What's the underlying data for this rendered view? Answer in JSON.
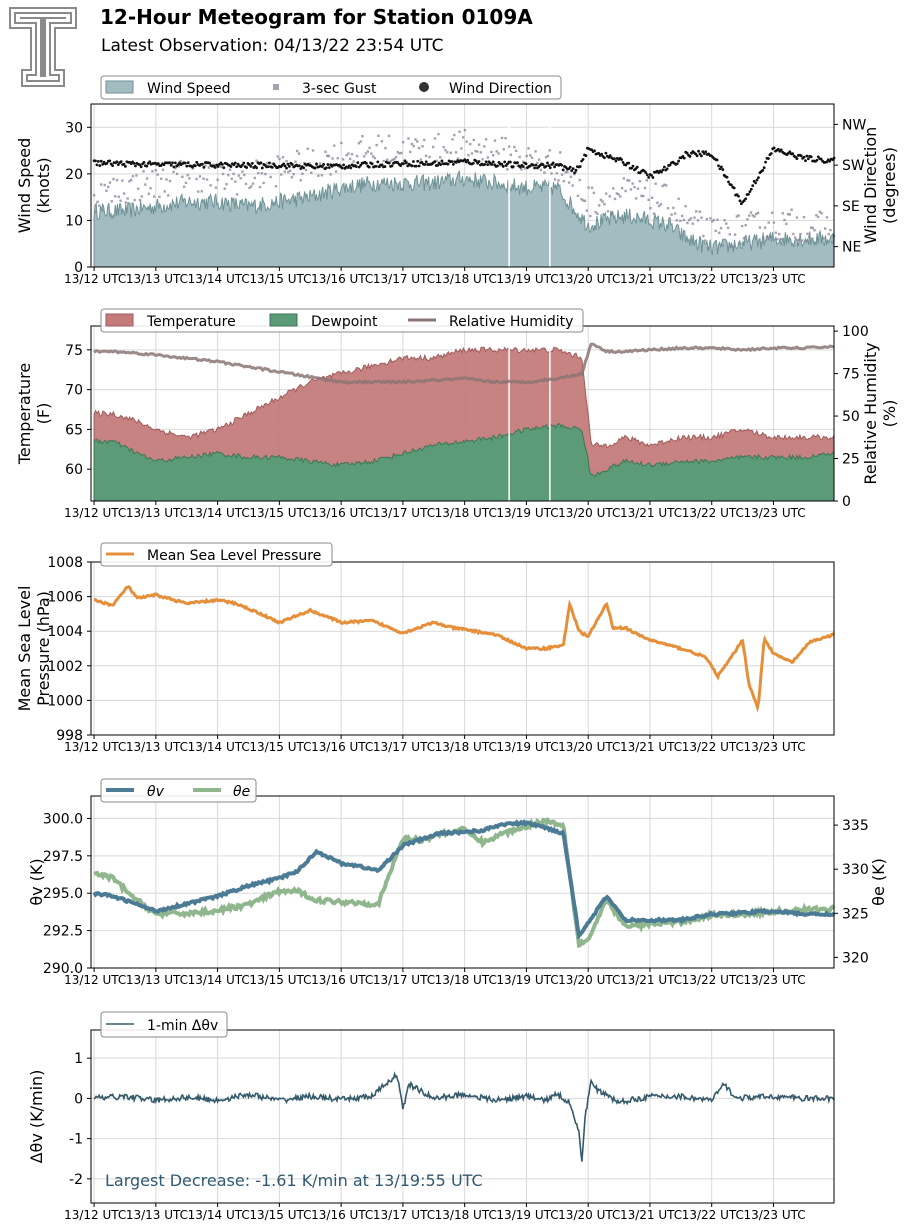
{
  "header": {
    "title": "12-Hour Meteogram for Station 0109A",
    "subtitle": "Latest Observation: 04/13/22 23:54 UTC"
  },
  "colors": {
    "wind": "#a3bcc2",
    "wind_edge": "#6f9295",
    "gust": "#8b7f98",
    "direction": "#111111",
    "temperature": "#c47b7b",
    "dewpoint": "#5b9b77",
    "rh": "#8b7474",
    "pressure": "#e68f3a",
    "theta_v": "#4b7b95",
    "theta_e": "#8fb68d",
    "dtheta": "#345a6b",
    "grid": "#d9d9d9"
  },
  "x_ticks": [
    "13/12 UTC",
    "13/13 UTC",
    "13/14 UTC",
    "13/15 UTC",
    "13/16 UTC",
    "13/17 UTC",
    "13/18 UTC",
    "13/19 UTC",
    "13/20 UTC",
    "13/21 UTC",
    "13/22 UTC",
    "13/23 UTC"
  ],
  "chart_data": [
    {
      "type": "area",
      "x": [
        12.0,
        12.5,
        13.0,
        13.5,
        14.0,
        14.5,
        15.0,
        15.5,
        16.0,
        16.5,
        17.0,
        17.5,
        18.0,
        18.5,
        19.0,
        19.5,
        19.8,
        20.0,
        20.3,
        20.6,
        21.0,
        21.3,
        21.6,
        22.0,
        22.5,
        23.0,
        23.5,
        23.98
      ],
      "series": [
        {
          "name": "Wind Speed",
          "values": [
            12,
            12,
            13,
            14,
            14,
            13,
            14,
            15,
            17,
            18,
            18,
            18,
            19,
            18,
            17,
            17,
            12,
            9,
            10,
            11,
            10,
            9,
            6,
            4,
            5,
            6,
            6,
            6
          ]
        },
        {
          "name": "3-sec Gust",
          "values": [
            15,
            17,
            18,
            20,
            19,
            19,
            21,
            22,
            24,
            25,
            25,
            25,
            26,
            25,
            23,
            22,
            18,
            14,
            15,
            16,
            15,
            14,
            10,
            7,
            8,
            9,
            9,
            8
          ]
        },
        {
          "name": "Wind Direction",
          "values": [
            230,
            228,
            226,
            226,
            225,
            224,
            225,
            222,
            223,
            226,
            229,
            228,
            233,
            228,
            224,
            225,
            210,
            260,
            245,
            230,
            200,
            220,
            250,
            250,
            140,
            260,
            240,
            235
          ]
        }
      ],
      "ylabel": "Wind Speed\n(knots)",
      "ylabel_right": "Wind Direction\n(degrees)",
      "ylim": [
        0,
        35
      ],
      "yticks": [
        0,
        10,
        20,
        30
      ],
      "ylim_right": [
        0,
        360
      ],
      "yticks_right": [
        45,
        135,
        225,
        315
      ],
      "ytick_labels_right": [
        "NE",
        "SE",
        "SW",
        "NW"
      ],
      "legend": "top-left"
    },
    {
      "type": "area",
      "x": [
        12.0,
        12.3,
        12.7,
        13.0,
        13.5,
        14.0,
        14.5,
        15.0,
        15.5,
        16.0,
        16.5,
        17.0,
        17.5,
        18.0,
        18.5,
        19.0,
        19.5,
        19.9,
        20.05,
        20.3,
        20.6,
        21.0,
        21.5,
        22.0,
        22.5,
        23.0,
        23.5,
        23.98
      ],
      "series": [
        {
          "name": "Temperature",
          "values": [
            67,
            67,
            66,
            65,
            64,
            65,
            67,
            69,
            71,
            72,
            73,
            74,
            74,
            75,
            75,
            75,
            75,
            74,
            63,
            63,
            64,
            63,
            64,
            64,
            65,
            64,
            64,
            64
          ]
        },
        {
          "name": "Dewpoint",
          "values": [
            63.5,
            63.5,
            62,
            61,
            61.5,
            62,
            61.5,
            61.5,
            61,
            60.5,
            61,
            62,
            63,
            63.5,
            64,
            65,
            65.5,
            65,
            59,
            60,
            61,
            60.5,
            61,
            61,
            61.5,
            61.5,
            61.5,
            62
          ]
        },
        {
          "name": "Relative Humidity",
          "values": [
            88,
            88,
            87,
            86,
            84,
            82,
            79,
            76,
            73,
            70,
            70,
            70,
            71,
            72,
            70,
            70,
            72,
            75,
            93,
            88,
            88,
            89,
            90,
            90,
            89,
            90,
            90,
            91
          ]
        }
      ],
      "ylabel": "Temperature\n(F)",
      "ylabel_right": "Relative Humidity\n(%)",
      "ylim": [
        56,
        78
      ],
      "yticks": [
        60,
        65,
        70,
        75
      ],
      "ylim_right": [
        0,
        103
      ],
      "yticks_right": [
        0,
        25,
        50,
        75,
        100
      ],
      "legend": "top-left"
    },
    {
      "type": "line",
      "x": [
        12.0,
        12.3,
        12.55,
        12.7,
        13.0,
        13.5,
        14.0,
        14.3,
        14.7,
        15.0,
        15.5,
        15.8,
        16.0,
        16.5,
        17.0,
        17.5,
        17.8,
        18.0,
        18.5,
        19.0,
        19.3,
        19.6,
        19.7,
        19.85,
        20.0,
        20.3,
        20.4,
        20.6,
        20.8,
        21.0,
        21.3,
        21.6,
        21.9,
        22.1,
        22.3,
        22.5,
        22.6,
        22.75,
        22.85,
        23.0,
        23.3,
        23.6,
        23.98
      ],
      "series": [
        {
          "name": "Mean Sea Level Pressure",
          "values": [
            1005.8,
            1005.5,
            1006.6,
            1005.9,
            1006.1,
            1005.6,
            1005.8,
            1005.6,
            1005.0,
            1004.5,
            1005.2,
            1004.8,
            1004.5,
            1004.6,
            1003.9,
            1004.5,
            1004.2,
            1004.1,
            1003.8,
            1003.0,
            1003.0,
            1003.2,
            1005.6,
            1004.0,
            1003.7,
            1005.6,
            1004.2,
            1004.2,
            1003.8,
            1003.5,
            1003.2,
            1002.9,
            1002.5,
            1001.4,
            1002.4,
            1003.5,
            1001.0,
            999.5,
            1003.6,
            1002.7,
            1002.2,
            1003.4,
            1003.8
          ]
        }
      ],
      "ylabel": "Mean Sea Level\nPressure (hPa)",
      "ylim": [
        998,
        1008
      ],
      "yticks": [
        998,
        1000,
        1002,
        1004,
        1006,
        1008
      ],
      "legend": "top-left"
    },
    {
      "type": "line",
      "x": [
        12.0,
        12.3,
        12.6,
        13.0,
        13.5,
        14.0,
        14.5,
        15.0,
        15.3,
        15.6,
        16.0,
        16.3,
        16.6,
        17.0,
        17.3,
        17.6,
        18.0,
        18.3,
        18.6,
        19.0,
        19.3,
        19.6,
        19.85,
        20.0,
        20.3,
        20.6,
        21.0,
        21.5,
        22.0,
        22.5,
        23.0,
        23.5,
        23.98
      ],
      "series": [
        {
          "name": "θv",
          "values": [
            295.0,
            294.8,
            294.4,
            293.8,
            294.3,
            294.8,
            295.5,
            296.0,
            296.5,
            297.8,
            297.0,
            296.8,
            296.5,
            298.2,
            298.6,
            299.0,
            299.1,
            299.2,
            299.6,
            299.7,
            299.4,
            299.0,
            292.2,
            293.0,
            294.8,
            293.2,
            293.2,
            293.2,
            293.6,
            293.7,
            293.8,
            293.6,
            293.6
          ]
        },
        {
          "name": "θe",
          "values": [
            329.5,
            329.0,
            327.0,
            324.9,
            325.0,
            325.3,
            326.0,
            327.5,
            327.5,
            326.5,
            326.3,
            326.2,
            326.0,
            333.5,
            333.3,
            334.0,
            334.5,
            333.0,
            334.0,
            334.9,
            335.5,
            335.0,
            321.5,
            322.0,
            326.5,
            323.5,
            323.8,
            324.0,
            324.8,
            324.9,
            325.2,
            325.4,
            325.5
          ]
        }
      ],
      "ylabel": "θv (K)",
      "ylabel_right": "θe (K)",
      "ylim": [
        290,
        301.5
      ],
      "yticks": [
        290.0,
        292.5,
        295.0,
        297.5,
        300.0
      ],
      "ylim_right": [
        318.8,
        338.3
      ],
      "yticks_right": [
        320,
        325,
        330,
        335
      ],
      "legend": "top-left"
    },
    {
      "type": "line",
      "x": [
        12.0,
        12.5,
        13.0,
        13.5,
        14.0,
        14.5,
        15.0,
        15.5,
        16.0,
        16.5,
        16.9,
        17.0,
        17.1,
        17.5,
        18.0,
        18.5,
        19.0,
        19.3,
        19.5,
        19.7,
        19.85,
        19.9,
        19.95,
        20.05,
        20.15,
        20.5,
        21.0,
        21.5,
        22.0,
        22.2,
        22.4,
        23.0,
        23.5,
        23.98
      ],
      "series": [
        {
          "name": "1-min Δθv",
          "values": [
            0.0,
            0.05,
            -0.05,
            0.03,
            -0.05,
            0.1,
            -0.05,
            0.05,
            -0.03,
            0.05,
            0.6,
            -0.25,
            0.35,
            0.0,
            0.1,
            -0.05,
            0.05,
            -0.05,
            0.1,
            -0.1,
            -0.8,
            -1.61,
            -0.5,
            0.5,
            0.2,
            -0.1,
            0.05,
            0.05,
            -0.05,
            0.35,
            0.0,
            0.05,
            0.0,
            0.0
          ]
        }
      ],
      "annotation": "Largest Decrease: -1.61 K/min at 13/19:55 UTC",
      "ylabel": "Δθv (K/min)",
      "ylim": [
        -2.6,
        1.7
      ],
      "yticks": [
        -2,
        -1,
        0,
        1
      ],
      "legend": "top-left"
    }
  ]
}
